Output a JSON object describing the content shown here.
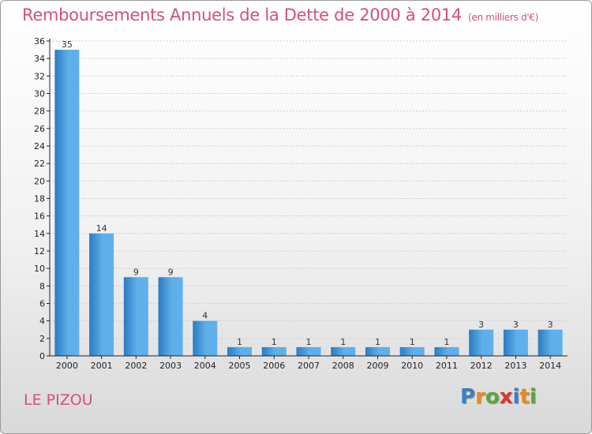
{
  "title": "Remboursements Annuels de la Dette de 2000 à 2014",
  "unit": "(en milliers d'€)",
  "city": "LE PIZOU",
  "logo": {
    "text": "Proxiti",
    "letters": [
      {
        "ch": "P",
        "color": "#3a7fc4"
      },
      {
        "ch": "r",
        "color": "#e58a1d"
      },
      {
        "ch": "o",
        "color": "#5aa53c"
      },
      {
        "ch": "x",
        "color": "#d9362f"
      },
      {
        "ch": "i",
        "color": "#3a7fc4"
      },
      {
        "ch": "t",
        "color": "#e58a1d"
      },
      {
        "ch": "i",
        "color": "#5aa53c"
      }
    ]
  },
  "colors": {
    "title": "#d4507a",
    "bar_light": "#5fb0ea",
    "bar_dark": "#2a7bc2",
    "grid": "#cfcfcf",
    "axis": "#222222"
  },
  "chart_data": {
    "type": "bar",
    "title": "Remboursements Annuels de la Dette de 2000 à 2014",
    "xlabel": "",
    "ylabel": "",
    "categories": [
      "2000",
      "2001",
      "2002",
      "2003",
      "2004",
      "2005",
      "2006",
      "2007",
      "2008",
      "2009",
      "2010",
      "2011",
      "2012",
      "2013",
      "2014"
    ],
    "values": [
      35,
      14,
      9,
      9,
      4,
      1,
      1,
      1,
      1,
      1,
      1,
      1,
      3,
      3,
      3
    ],
    "ylim": [
      0,
      36
    ],
    "yticks": [
      0,
      2,
      4,
      6,
      8,
      10,
      12,
      14,
      16,
      18,
      20,
      22,
      24,
      26,
      28,
      30,
      32,
      34,
      36
    ],
    "grid": true,
    "legend": "none"
  }
}
